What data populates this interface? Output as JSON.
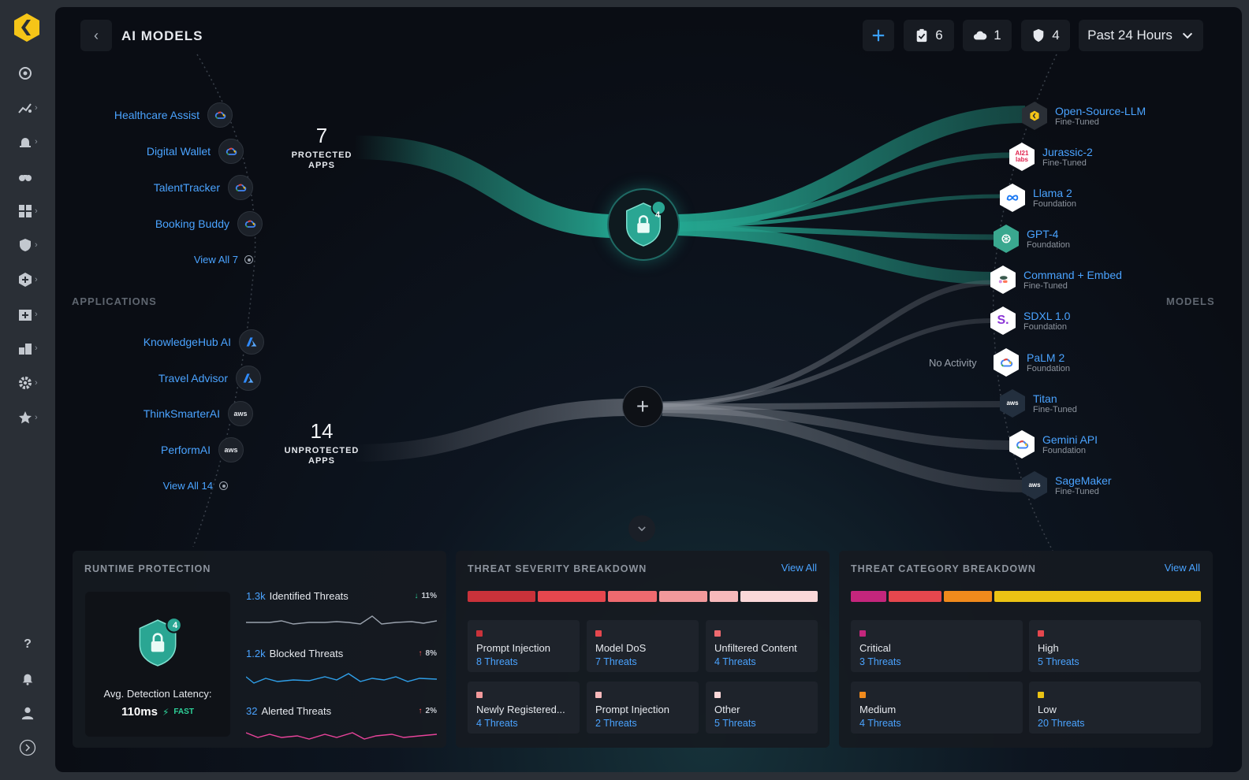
{
  "header": {
    "title": "AI MODELS",
    "add_icon": "plus-icon",
    "tasks_count": "6",
    "cloud_count": "1",
    "shield_count": "4",
    "time_range": "Past 24 Hours"
  },
  "sections": {
    "applications": "APPLICATIONS",
    "models": "MODELS"
  },
  "protected": {
    "count": "7",
    "label_line1": "PROTECTED",
    "label_line2": "APPS",
    "badge": "4"
  },
  "unprotected": {
    "count": "14",
    "label_line1": "UNPROTECTED",
    "label_line2": "APPS"
  },
  "protected_apps": [
    {
      "name": "Healthcare Assist",
      "provider": "google-cloud"
    },
    {
      "name": "Digital Wallet",
      "provider": "google-cloud"
    },
    {
      "name": "TalentTracker",
      "provider": "google-cloud"
    },
    {
      "name": "Booking Buddy",
      "provider": "google-cloud"
    }
  ],
  "protected_view_all": "View All 7",
  "unprotected_apps": [
    {
      "name": "KnowledgeHub AI",
      "provider": "azure"
    },
    {
      "name": "Travel Advisor",
      "provider": "azure"
    },
    {
      "name": "ThinkSmarterAI",
      "provider": "aws"
    },
    {
      "name": "PerformAI",
      "provider": "aws"
    }
  ],
  "unprotected_view_all": "View All 14",
  "models": [
    {
      "name": "Open-Source-LLM",
      "type": "Fine-Tuned",
      "icon": "open-source-icon",
      "badge_text": ""
    },
    {
      "name": "Jurassic-2",
      "type": "Fine-Tuned",
      "icon": "ai21-icon",
      "badge_text": "AI21 labs"
    },
    {
      "name": "Llama 2",
      "type": "Foundation",
      "icon": "meta-icon",
      "badge_text": ""
    },
    {
      "name": "GPT-4",
      "type": "Foundation",
      "icon": "openai-icon",
      "badge_text": ""
    },
    {
      "name": "Command + Embed",
      "type": "Fine-Tuned",
      "icon": "cohere-icon",
      "badge_text": ""
    },
    {
      "name": "SDXL 1.0",
      "type": "Foundation",
      "icon": "stability-icon",
      "badge_text": "S."
    },
    {
      "name": "PaLM 2",
      "type": "Foundation",
      "icon": "google-cloud-icon",
      "badge_text": ""
    },
    {
      "name": "Titan",
      "type": "Fine-Tuned",
      "icon": "aws-icon",
      "badge_text": "aws"
    },
    {
      "name": "Gemini API",
      "type": "Foundation",
      "icon": "google-cloud-icon",
      "badge_text": ""
    },
    {
      "name": "SageMaker",
      "type": "Fine-Tuned",
      "icon": "aws-icon",
      "badge_text": "aws"
    }
  ],
  "no_activity": "No Activity",
  "runtime": {
    "title": "RUNTIME PROTECTION",
    "badge": "4",
    "latency_label": "Avg. Detection Latency:",
    "latency_value": "110ms",
    "latency_status": "FAST",
    "metrics": [
      {
        "count": "1.3k",
        "label": "Identified Threats",
        "delta": "11%",
        "direction": "down",
        "color": "#9aa2ad"
      },
      {
        "count": "1.2k",
        "label": "Blocked Threats",
        "delta": "8%",
        "direction": "up",
        "color": "#2f9fe8"
      },
      {
        "count": "32",
        "label": "Alerted Threats",
        "delta": "2%",
        "direction": "up",
        "color": "#e8439a"
      }
    ]
  },
  "severity": {
    "title": "THREAT SEVERITY BREAKDOWN",
    "view_all": "View All",
    "items": [
      {
        "name": "Prompt Injection",
        "count": "8 Threats",
        "color": "#c9323a"
      },
      {
        "name": "Model DoS",
        "count": "7 Threats",
        "color": "#e5474e"
      },
      {
        "name": "Unfiltered Content",
        "count": "4 Threats",
        "color": "#ee6a6f"
      },
      {
        "name": "Newly Registered...",
        "count": "4 Threats",
        "color": "#f2999b"
      },
      {
        "name": "Prompt Injection",
        "count": "2 Threats",
        "color": "#f7b9bb"
      },
      {
        "name": "Other",
        "count": "5 Threats",
        "color": "#fbd8d9"
      }
    ]
  },
  "category": {
    "title": "THREAT CATEGORY BREAKDOWN",
    "view_all": "View All",
    "items": [
      {
        "name": "Critical",
        "count": "3 Threats",
        "color": "#c4267c"
      },
      {
        "name": "High",
        "count": "5 Threats",
        "color": "#e5474e"
      },
      {
        "name": "Medium",
        "count": "4 Threats",
        "color": "#f08a1c"
      },
      {
        "name": "Low",
        "count": "20 Threats",
        "color": "#ebc314"
      }
    ]
  }
}
